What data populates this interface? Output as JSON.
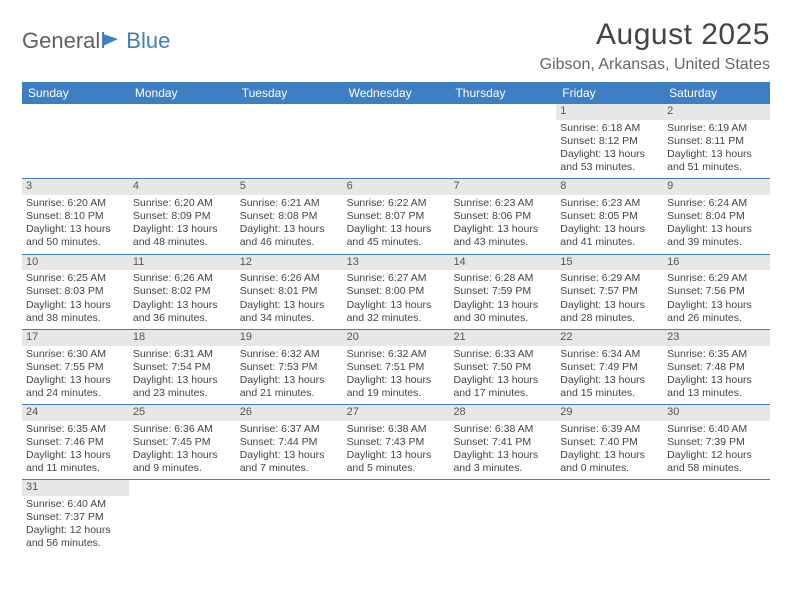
{
  "logo": {
    "text1": "General",
    "text2": "Blue"
  },
  "title": "August 2025",
  "location": "Gibson, Arkansas, United States",
  "colors": {
    "header_bg": "#3d7fc2",
    "header_text": "#ffffff",
    "daynum_bg": "#e7e7e7",
    "border": "#3d7fc2",
    "text": "#444444",
    "logo_gray": "#606060",
    "logo_blue": "#3d7fc2"
  },
  "weekdays": [
    "Sunday",
    "Monday",
    "Tuesday",
    "Wednesday",
    "Thursday",
    "Friday",
    "Saturday"
  ],
  "weeks": [
    [
      {
        "empty": true
      },
      {
        "empty": true
      },
      {
        "empty": true
      },
      {
        "empty": true
      },
      {
        "empty": true
      },
      {
        "num": "1",
        "sunrise": "Sunrise: 6:18 AM",
        "sunset": "Sunset: 8:12 PM",
        "daylight": "Daylight: 13 hours and 53 minutes."
      },
      {
        "num": "2",
        "sunrise": "Sunrise: 6:19 AM",
        "sunset": "Sunset: 8:11 PM",
        "daylight": "Daylight: 13 hours and 51 minutes."
      }
    ],
    [
      {
        "num": "3",
        "sunrise": "Sunrise: 6:20 AM",
        "sunset": "Sunset: 8:10 PM",
        "daylight": "Daylight: 13 hours and 50 minutes."
      },
      {
        "num": "4",
        "sunrise": "Sunrise: 6:20 AM",
        "sunset": "Sunset: 8:09 PM",
        "daylight": "Daylight: 13 hours and 48 minutes."
      },
      {
        "num": "5",
        "sunrise": "Sunrise: 6:21 AM",
        "sunset": "Sunset: 8:08 PM",
        "daylight": "Daylight: 13 hours and 46 minutes."
      },
      {
        "num": "6",
        "sunrise": "Sunrise: 6:22 AM",
        "sunset": "Sunset: 8:07 PM",
        "daylight": "Daylight: 13 hours and 45 minutes."
      },
      {
        "num": "7",
        "sunrise": "Sunrise: 6:23 AM",
        "sunset": "Sunset: 8:06 PM",
        "daylight": "Daylight: 13 hours and 43 minutes."
      },
      {
        "num": "8",
        "sunrise": "Sunrise: 6:23 AM",
        "sunset": "Sunset: 8:05 PM",
        "daylight": "Daylight: 13 hours and 41 minutes."
      },
      {
        "num": "9",
        "sunrise": "Sunrise: 6:24 AM",
        "sunset": "Sunset: 8:04 PM",
        "daylight": "Daylight: 13 hours and 39 minutes."
      }
    ],
    [
      {
        "num": "10",
        "sunrise": "Sunrise: 6:25 AM",
        "sunset": "Sunset: 8:03 PM",
        "daylight": "Daylight: 13 hours and 38 minutes."
      },
      {
        "num": "11",
        "sunrise": "Sunrise: 6:26 AM",
        "sunset": "Sunset: 8:02 PM",
        "daylight": "Daylight: 13 hours and 36 minutes."
      },
      {
        "num": "12",
        "sunrise": "Sunrise: 6:26 AM",
        "sunset": "Sunset: 8:01 PM",
        "daylight": "Daylight: 13 hours and 34 minutes."
      },
      {
        "num": "13",
        "sunrise": "Sunrise: 6:27 AM",
        "sunset": "Sunset: 8:00 PM",
        "daylight": "Daylight: 13 hours and 32 minutes."
      },
      {
        "num": "14",
        "sunrise": "Sunrise: 6:28 AM",
        "sunset": "Sunset: 7:59 PM",
        "daylight": "Daylight: 13 hours and 30 minutes."
      },
      {
        "num": "15",
        "sunrise": "Sunrise: 6:29 AM",
        "sunset": "Sunset: 7:57 PM",
        "daylight": "Daylight: 13 hours and 28 minutes."
      },
      {
        "num": "16",
        "sunrise": "Sunrise: 6:29 AM",
        "sunset": "Sunset: 7:56 PM",
        "daylight": "Daylight: 13 hours and 26 minutes."
      }
    ],
    [
      {
        "num": "17",
        "sunrise": "Sunrise: 6:30 AM",
        "sunset": "Sunset: 7:55 PM",
        "daylight": "Daylight: 13 hours and 24 minutes."
      },
      {
        "num": "18",
        "sunrise": "Sunrise: 6:31 AM",
        "sunset": "Sunset: 7:54 PM",
        "daylight": "Daylight: 13 hours and 23 minutes."
      },
      {
        "num": "19",
        "sunrise": "Sunrise: 6:32 AM",
        "sunset": "Sunset: 7:53 PM",
        "daylight": "Daylight: 13 hours and 21 minutes."
      },
      {
        "num": "20",
        "sunrise": "Sunrise: 6:32 AM",
        "sunset": "Sunset: 7:51 PM",
        "daylight": "Daylight: 13 hours and 19 minutes."
      },
      {
        "num": "21",
        "sunrise": "Sunrise: 6:33 AM",
        "sunset": "Sunset: 7:50 PM",
        "daylight": "Daylight: 13 hours and 17 minutes."
      },
      {
        "num": "22",
        "sunrise": "Sunrise: 6:34 AM",
        "sunset": "Sunset: 7:49 PM",
        "daylight": "Daylight: 13 hours and 15 minutes."
      },
      {
        "num": "23",
        "sunrise": "Sunrise: 6:35 AM",
        "sunset": "Sunset: 7:48 PM",
        "daylight": "Daylight: 13 hours and 13 minutes."
      }
    ],
    [
      {
        "num": "24",
        "sunrise": "Sunrise: 6:35 AM",
        "sunset": "Sunset: 7:46 PM",
        "daylight": "Daylight: 13 hours and 11 minutes."
      },
      {
        "num": "25",
        "sunrise": "Sunrise: 6:36 AM",
        "sunset": "Sunset: 7:45 PM",
        "daylight": "Daylight: 13 hours and 9 minutes."
      },
      {
        "num": "26",
        "sunrise": "Sunrise: 6:37 AM",
        "sunset": "Sunset: 7:44 PM",
        "daylight": "Daylight: 13 hours and 7 minutes."
      },
      {
        "num": "27",
        "sunrise": "Sunrise: 6:38 AM",
        "sunset": "Sunset: 7:43 PM",
        "daylight": "Daylight: 13 hours and 5 minutes."
      },
      {
        "num": "28",
        "sunrise": "Sunrise: 6:38 AM",
        "sunset": "Sunset: 7:41 PM",
        "daylight": "Daylight: 13 hours and 3 minutes."
      },
      {
        "num": "29",
        "sunrise": "Sunrise: 6:39 AM",
        "sunset": "Sunset: 7:40 PM",
        "daylight": "Daylight: 13 hours and 0 minutes."
      },
      {
        "num": "30",
        "sunrise": "Sunrise: 6:40 AM",
        "sunset": "Sunset: 7:39 PM",
        "daylight": "Daylight: 12 hours and 58 minutes."
      }
    ],
    [
      {
        "num": "31",
        "sunrise": "Sunrise: 6:40 AM",
        "sunset": "Sunset: 7:37 PM",
        "daylight": "Daylight: 12 hours and 56 minutes."
      },
      {
        "empty": true
      },
      {
        "empty": true
      },
      {
        "empty": true
      },
      {
        "empty": true
      },
      {
        "empty": true
      },
      {
        "empty": true
      }
    ]
  ]
}
